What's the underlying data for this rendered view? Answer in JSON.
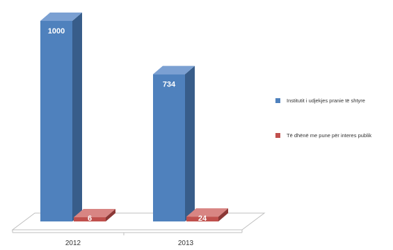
{
  "chart_data": {
    "type": "bar",
    "three_d": true,
    "categories": [
      "2012",
      "2013"
    ],
    "series": [
      {
        "name": "Institutit i udjekjes pranie të shtyre",
        "values": [
          1000,
          734
        ],
        "color": "#4f81bd",
        "color_side": "#385d8a",
        "color_top": "#7ba0d2"
      },
      {
        "name": "Të dhënë me pune për interes publik",
        "values": [
          6,
          24
        ],
        "color": "#c0504d",
        "color_side": "#8c3836",
        "color_top": "#d88583"
      }
    ],
    "data_labels": [
      [
        "1000",
        "734"
      ],
      [
        "6",
        "24"
      ]
    ],
    "ylim": [
      0,
      1000
    ],
    "grid": false,
    "legend_position": "right"
  }
}
